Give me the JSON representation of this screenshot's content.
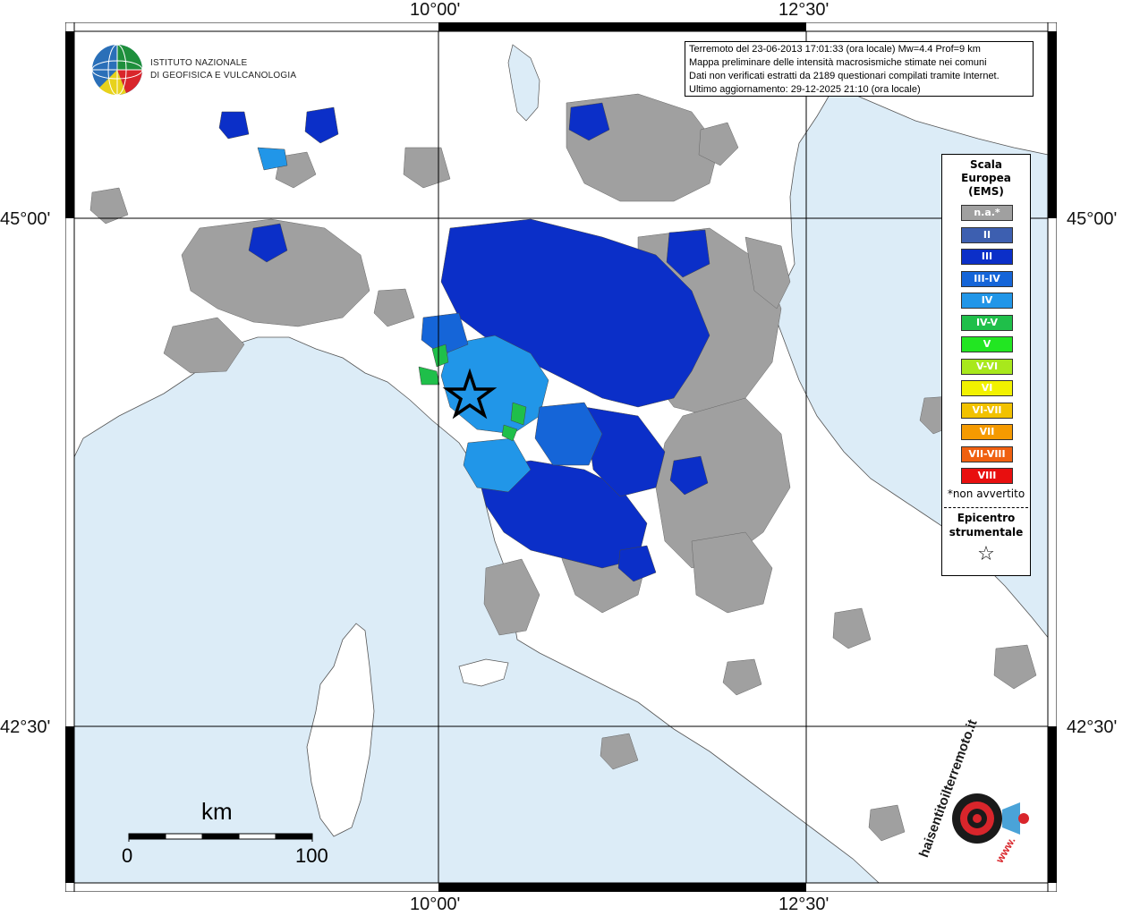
{
  "axes": {
    "top_lon_1": "10°00'",
    "top_lon_2": "12°30'",
    "bottom_lon_1": "10°00'",
    "bottom_lon_2": "12°30'",
    "left_lat_1": "45°00'",
    "left_lat_2": "42°30'",
    "right_lat_1": "45°00'",
    "right_lat_2": "42°30'"
  },
  "logo": {
    "line1": "ISTITUTO NAZIONALE",
    "line2": "DI GEOFISICA E VULCANOLOGIA",
    "colors": [
      "#1e8f3c",
      "#2a6fb8",
      "#e8d21b",
      "#d9252b"
    ]
  },
  "info": {
    "line1": "Terremoto del 23-06-2013 17:01:33 (ora locale) Mw=4.4 Prof=9 km",
    "line2": "Mappa preliminare delle intensità macrosismiche stimate nei comuni",
    "line3": "Dati non verificati estratti da 2189 questionari compilati tramite Internet.",
    "line4": "Ultimo aggiornamento: 29-12-2025 21:10 (ora locale)"
  },
  "legend": {
    "title1": "Scala",
    "title2": "Europea",
    "title3": "(EMS)",
    "items": [
      {
        "label": "n.a.*",
        "color": "#a0a0a0"
      },
      {
        "label": "II",
        "color": "#3d5fb0"
      },
      {
        "label": "III",
        "color": "#0b2fc8"
      },
      {
        "label": "III-IV",
        "color": "#1565d8"
      },
      {
        "label": "IV",
        "color": "#2196e8"
      },
      {
        "label": "IV-V",
        "color": "#1fbf4a"
      },
      {
        "label": "V",
        "color": "#22e622"
      },
      {
        "label": "V-VI",
        "color": "#a8e81c"
      },
      {
        "label": "VI",
        "color": "#f2f200"
      },
      {
        "label": "VI-VII",
        "color": "#f2c200"
      },
      {
        "label": "VII",
        "color": "#f59a00"
      },
      {
        "label": "VII-VIII",
        "color": "#f06010"
      },
      {
        "label": "VIII",
        "color": "#e80f0f"
      }
    ],
    "note": "*non avvertito",
    "epicentre1": "Epicentro",
    "epicentre2": "strumentale",
    "star_icon": "star-outline-icon"
  },
  "scale_bar": {
    "unit": "km",
    "min": "0",
    "max": "100"
  },
  "site_logo": {
    "text": "haisentitoilterremoto.it",
    "url_text": "www.",
    "colors": [
      "#d9252b",
      "#1a1a1a",
      "#4aa3d8"
    ]
  },
  "map_colors": {
    "sea": "#dcecf7",
    "land": "#ffffff",
    "na": "#a0a0a0",
    "grid": "#000000"
  }
}
